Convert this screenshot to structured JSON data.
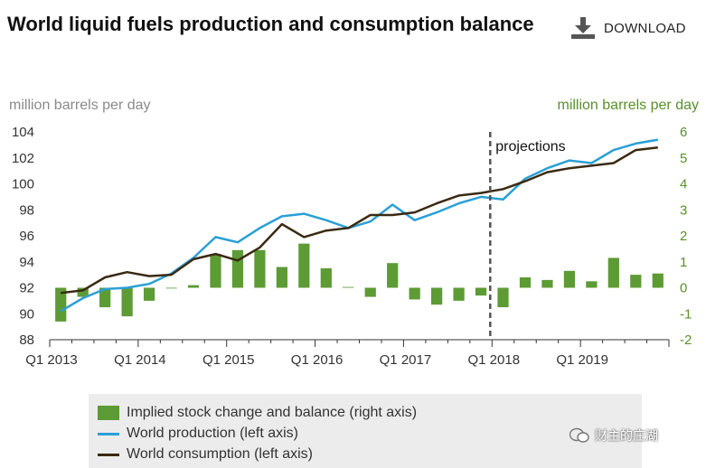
{
  "header": {
    "title": "World liquid fuels production and consumption balance",
    "download_label": "DOWNLOAD"
  },
  "axes": {
    "left_unit": "million barrels per day",
    "right_unit": "million barrels per day"
  },
  "legend": {
    "stock": "Implied stock change and balance (right axis)",
    "production": "World production (left axis)",
    "consumption": "World consumption (left axis)"
  },
  "watermark": "财主的庄湖",
  "chart_data": {
    "type": "bar+line",
    "title": "World liquid fuels production and consumption balance",
    "left_axis": {
      "label": "million barrels per day",
      "range": [
        88,
        104
      ],
      "ticks": [
        88,
        90,
        92,
        94,
        96,
        98,
        100,
        102,
        104
      ]
    },
    "right_axis": {
      "label": "million barrels per day",
      "range": [
        -2,
        6
      ],
      "ticks": [
        -2,
        -1,
        0,
        1,
        2,
        3,
        4,
        5,
        6
      ]
    },
    "x_labels": [
      "Q1 2013",
      "Q1 2014",
      "Q1 2015",
      "Q1 2016",
      "Q1 2017",
      "Q1 2018",
      "Q1 2019"
    ],
    "quarters": [
      "2013Q1",
      "2013Q2",
      "2013Q3",
      "2013Q4",
      "2014Q1",
      "2014Q2",
      "2014Q3",
      "2014Q4",
      "2015Q1",
      "2015Q2",
      "2015Q3",
      "2015Q4",
      "2016Q1",
      "2016Q2",
      "2016Q3",
      "2016Q4",
      "2017Q1",
      "2017Q2",
      "2017Q3",
      "2017Q4",
      "2018Q1",
      "2018Q2",
      "2018Q3",
      "2018Q4",
      "2019Q1",
      "2019Q2",
      "2019Q3",
      "2019Q4"
    ],
    "annotation": "projections",
    "projection_start_index": 20,
    "series": [
      {
        "name": "Implied stock change and balance (right axis)",
        "axis": "right",
        "kind": "bar",
        "color": "#5d9b35",
        "values": [
          -1.3,
          -0.35,
          -0.75,
          -1.1,
          -0.5,
          0.0,
          0.1,
          1.3,
          1.45,
          1.45,
          0.8,
          1.7,
          0.75,
          0.03,
          -0.35,
          0.95,
          -0.45,
          -0.65,
          -0.5,
          -0.3,
          -0.75,
          0.4,
          0.3,
          0.65,
          0.25,
          1.15,
          0.5,
          0.55
        ]
      },
      {
        "name": "World production (left axis)",
        "axis": "left",
        "kind": "line",
        "color": "#2a9fd6",
        "values": [
          90.2,
          91.2,
          91.9,
          92.0,
          92.3,
          93.1,
          94.3,
          95.9,
          95.5,
          96.6,
          97.5,
          97.7,
          97.2,
          96.6,
          97.1,
          98.4,
          97.2,
          97.8,
          98.5,
          99.0,
          98.8,
          100.4,
          101.2,
          101.8,
          101.6,
          102.6,
          103.1,
          103.4
        ]
      },
      {
        "name": "World consumption (left axis)",
        "axis": "left",
        "kind": "line",
        "color": "#3b2a12",
        "values": [
          91.6,
          91.8,
          92.8,
          93.2,
          92.9,
          93.0,
          94.2,
          94.6,
          94.1,
          95.1,
          96.9,
          95.9,
          96.4,
          96.6,
          97.6,
          97.6,
          97.8,
          98.5,
          99.1,
          99.3,
          99.6,
          100.2,
          100.9,
          101.2,
          101.4,
          101.6,
          102.6,
          102.8
        ]
      }
    ]
  }
}
